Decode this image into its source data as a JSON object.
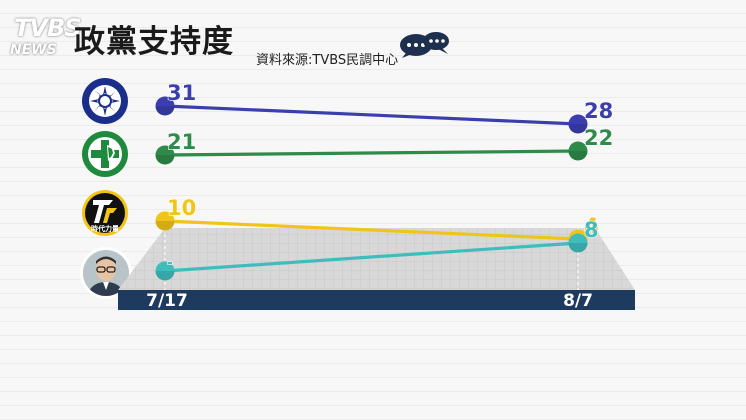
{
  "header": {
    "logo_top": "TVBS",
    "logo_bottom": "NEWS",
    "title": "政黨支持度",
    "source": "資料來源:TVBS民調中心"
  },
  "icons": {
    "chat": "chat-bubbles-icon",
    "kmt": "kmt-emblem-icon",
    "dpp": "dpp-emblem-icon",
    "npp": "npp-emblem-icon",
    "person": "person-photo-icon"
  },
  "npp_caption": "時代力量",
  "chart_data": {
    "type": "line",
    "categories": [
      "7/17",
      "8/7"
    ],
    "ylim": [
      0,
      35
    ],
    "grid": false,
    "series": [
      {
        "key": "kmt",
        "color": "#3b3fae",
        "values": [
          31,
          28
        ],
        "labels": [
          "31",
          "28"
        ]
      },
      {
        "key": "dpp",
        "color": "#2e8b4a",
        "values": [
          21,
          22
        ],
        "labels": [
          "21",
          "22"
        ]
      },
      {
        "key": "npp",
        "color": "#f0c419",
        "values": [
          10,
          4
        ],
        "labels": [
          "10",
          "4"
        ]
      },
      {
        "key": "ko",
        "color": "#3fbdbd",
        "values": [
          null,
          8
        ],
        "labels": [
          "-",
          "8"
        ]
      }
    ]
  }
}
